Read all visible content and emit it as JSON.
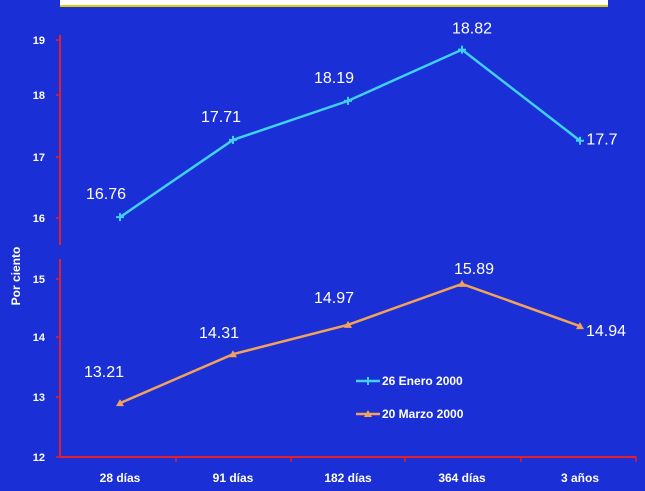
{
  "chart_data": {
    "type": "line",
    "title": "",
    "ylabel": "Por ciento",
    "xlabel": "",
    "categories": [
      "28 días",
      "91 días",
      "182 días",
      "364 días",
      "3 años"
    ],
    "yticks": [
      12,
      13,
      14,
      15,
      16,
      17,
      18,
      19
    ],
    "ytick_labels": [
      "12",
      "13",
      "14",
      "15",
      "16",
      "17",
      "18",
      "19"
    ],
    "ylim": [
      12,
      19
    ],
    "grid": false,
    "legend_position": "center-right",
    "series": [
      {
        "name": "26 Enero 2000",
        "values": [
          16.76,
          17.71,
          18.19,
          18.82,
          17.7
        ],
        "labels": [
          "16.76",
          "17.71",
          "18.19",
          "18.82",
          "17.7"
        ],
        "color": "#3fd0f2"
      },
      {
        "name": "20 Marzo 2000",
        "values": [
          13.21,
          14.31,
          14.97,
          15.89,
          14.94
        ],
        "labels": [
          "13.21",
          "14.31",
          "14.97",
          "15.89",
          "14.94"
        ],
        "color": "#f2a25a"
      }
    ],
    "colors": {
      "background": "#1a2fd6",
      "axis": "#e0202a",
      "text": "#ffffff"
    }
  }
}
